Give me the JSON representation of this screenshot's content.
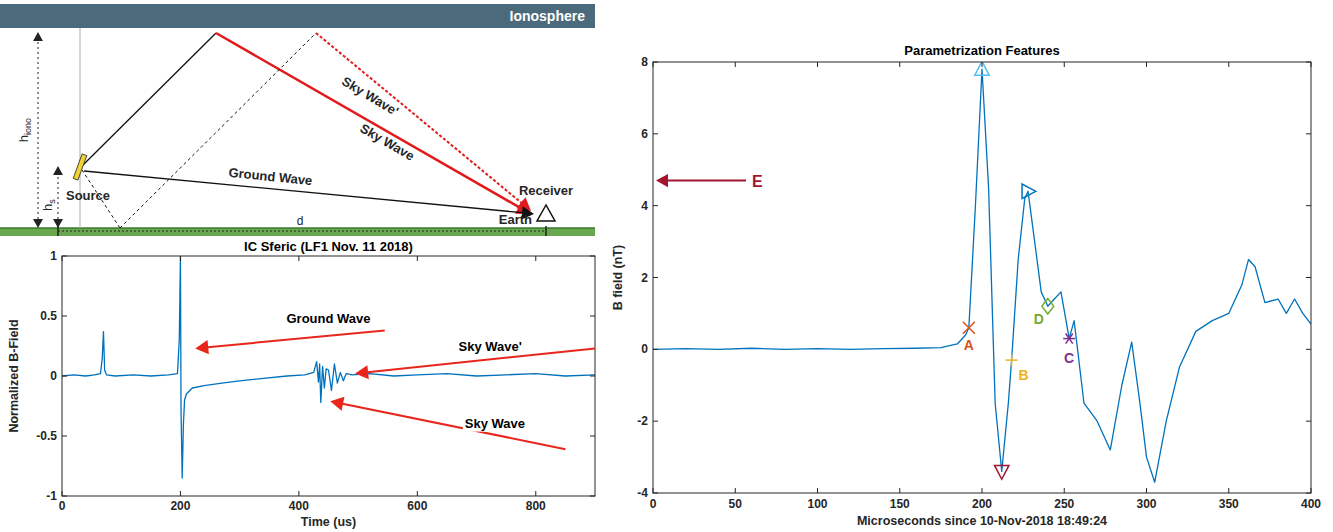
{
  "diagram": {
    "ionosphere": "Ionosphere",
    "h_iono": {
      "text": "h",
      "subscript": "iono"
    },
    "h_s": {
      "text": "h",
      "subscript": "s"
    },
    "source": "Source",
    "receiver": "Receiver",
    "earth": "Earth",
    "distance": "d",
    "ground_wave": "Ground Wave",
    "sky_wave": "Sky Wave",
    "sky_wave_prime": "Sky Wave'"
  },
  "chart_data": [
    {
      "type": "line",
      "title": "IC Sferic (LF1 Nov. 11 2018)",
      "x_label": "Time (us)",
      "y_label": "Normalized B-Field",
      "xlim": [
        0,
        900
      ],
      "ylim": [
        -1,
        1
      ],
      "xticks": [
        0,
        200,
        400,
        600,
        800
      ],
      "yticks": [
        -1,
        -0.5,
        0,
        0.5,
        1
      ],
      "grid": false,
      "series": [
        {
          "color": "#0072bd",
          "x": [
            0,
            20,
            40,
            55,
            65,
            68,
            70,
            72,
            75,
            90,
            120,
            150,
            180,
            195,
            198,
            200,
            201,
            203,
            205,
            207,
            210,
            220,
            240,
            270,
            300,
            340,
            380,
            410,
            425,
            430,
            433,
            435,
            437,
            440,
            443,
            446,
            450,
            455,
            460,
            465,
            470,
            475,
            480,
            490,
            520,
            560,
            600,
            650,
            700,
            750,
            800,
            850,
            900
          ],
          "values": [
            0,
            0.01,
            0,
            0.01,
            0.02,
            0.15,
            0.37,
            0.05,
            0.01,
            0,
            0.01,
            0,
            0.01,
            0.02,
            0.3,
            1.0,
            -0.3,
            -0.85,
            -0.4,
            -0.2,
            -0.15,
            -0.1,
            -0.08,
            -0.06,
            -0.04,
            -0.02,
            0,
            0.01,
            0.03,
            0.12,
            -0.05,
            0.1,
            -0.22,
            0.08,
            -0.1,
            0.06,
            0.05,
            -0.12,
            0.1,
            -0.06,
            0.03,
            -0.04,
            0.02,
            0.01,
            0.02,
            0,
            0.01,
            0.02,
            0,
            0.01,
            0.02,
            0,
            0.01
          ]
        }
      ],
      "annotations": [
        {
          "text": "Ground Wave",
          "x": 450,
          "y": 0.44,
          "arrow_from": [
            545,
            0.38
          ],
          "arrow_to": [
            225,
            0.23
          ],
          "color": "#e8261c"
        },
        {
          "text": "Sky Wave'",
          "x": 723,
          "y": 0.21,
          "arrow_from": [
            900,
            0.23
          ],
          "arrow_to": [
            495,
            0.02
          ],
          "color": "#e8261c"
        },
        {
          "text": "Sky Wave",
          "x": 731,
          "y": -0.43,
          "arrow_from": [
            850,
            -0.61
          ],
          "arrow_to": [
            453,
            -0.21
          ],
          "color": "#e8261c"
        }
      ]
    },
    {
      "type": "line",
      "title": "Parametrization Features",
      "x_label": "Microseconds since 10-Nov-2018 18:49:24",
      "y_label": "B field (nT)",
      "xlim": [
        0,
        400
      ],
      "ylim": [
        -4,
        8
      ],
      "xticks": [
        0,
        50,
        100,
        150,
        200,
        250,
        300,
        350,
        400
      ],
      "yticks": [
        -4,
        -2,
        0,
        2,
        4,
        6,
        8
      ],
      "grid": false,
      "series": [
        {
          "color": "#0072bd",
          "x": [
            0,
            20,
            40,
            60,
            80,
            100,
            120,
            140,
            160,
            175,
            185,
            190,
            192,
            196,
            200,
            204,
            208,
            212,
            216,
            218,
            222,
            226,
            228,
            232,
            236,
            240,
            244,
            248,
            253,
            256,
            262,
            270,
            278,
            285,
            291,
            296,
            300,
            305,
            312,
            320,
            330,
            340,
            350,
            358,
            362,
            366,
            372,
            380,
            385,
            390,
            395,
            400
          ],
          "values": [
            0,
            0.02,
            0,
            0.03,
            0,
            0.02,
            0,
            0.02,
            0.03,
            0.05,
            0.15,
            0.4,
            0.6,
            4,
            7.8,
            4.5,
            -1.5,
            -3.4,
            -1.5,
            -0.3,
            2.5,
            4.2,
            4.4,
            3,
            1.6,
            1.2,
            1.4,
            1.6,
            0.3,
            0.8,
            -1.5,
            -2,
            -2.8,
            -1,
            0.2,
            -1.5,
            -3,
            -3.7,
            -2,
            -0.5,
            0.5,
            0.8,
            1,
            1.8,
            2.5,
            2.3,
            1.3,
            1.4,
            1,
            1.4,
            1,
            0.7
          ]
        }
      ],
      "features": [
        {
          "label": "A",
          "x": 192,
          "y": 0.6,
          "marker": "x",
          "color": "#d95319"
        },
        {
          "x": 200,
          "y": 7.8,
          "marker": "triangle-up",
          "color": "#4dbeee"
        },
        {
          "x": 212,
          "y": -3.4,
          "marker": "triangle-down",
          "color": "#a2142f"
        },
        {
          "label": "B",
          "x": 218,
          "y": -0.3,
          "marker": "plus",
          "color": "#edb120"
        },
        {
          "x": 228,
          "y": 4.4,
          "marker": "triangle-right",
          "color": "#0072bd"
        },
        {
          "label": "D",
          "x": 240,
          "y": 1.2,
          "marker": "diamond",
          "color": "#77ac30"
        },
        {
          "label": "C",
          "x": 253,
          "y": 0.3,
          "marker": "star",
          "color": "#7e2f8e"
        }
      ],
      "annotations": [
        {
          "text": "E",
          "x": 0,
          "y": 4.7,
          "color": "#a2142f"
        }
      ]
    }
  ]
}
